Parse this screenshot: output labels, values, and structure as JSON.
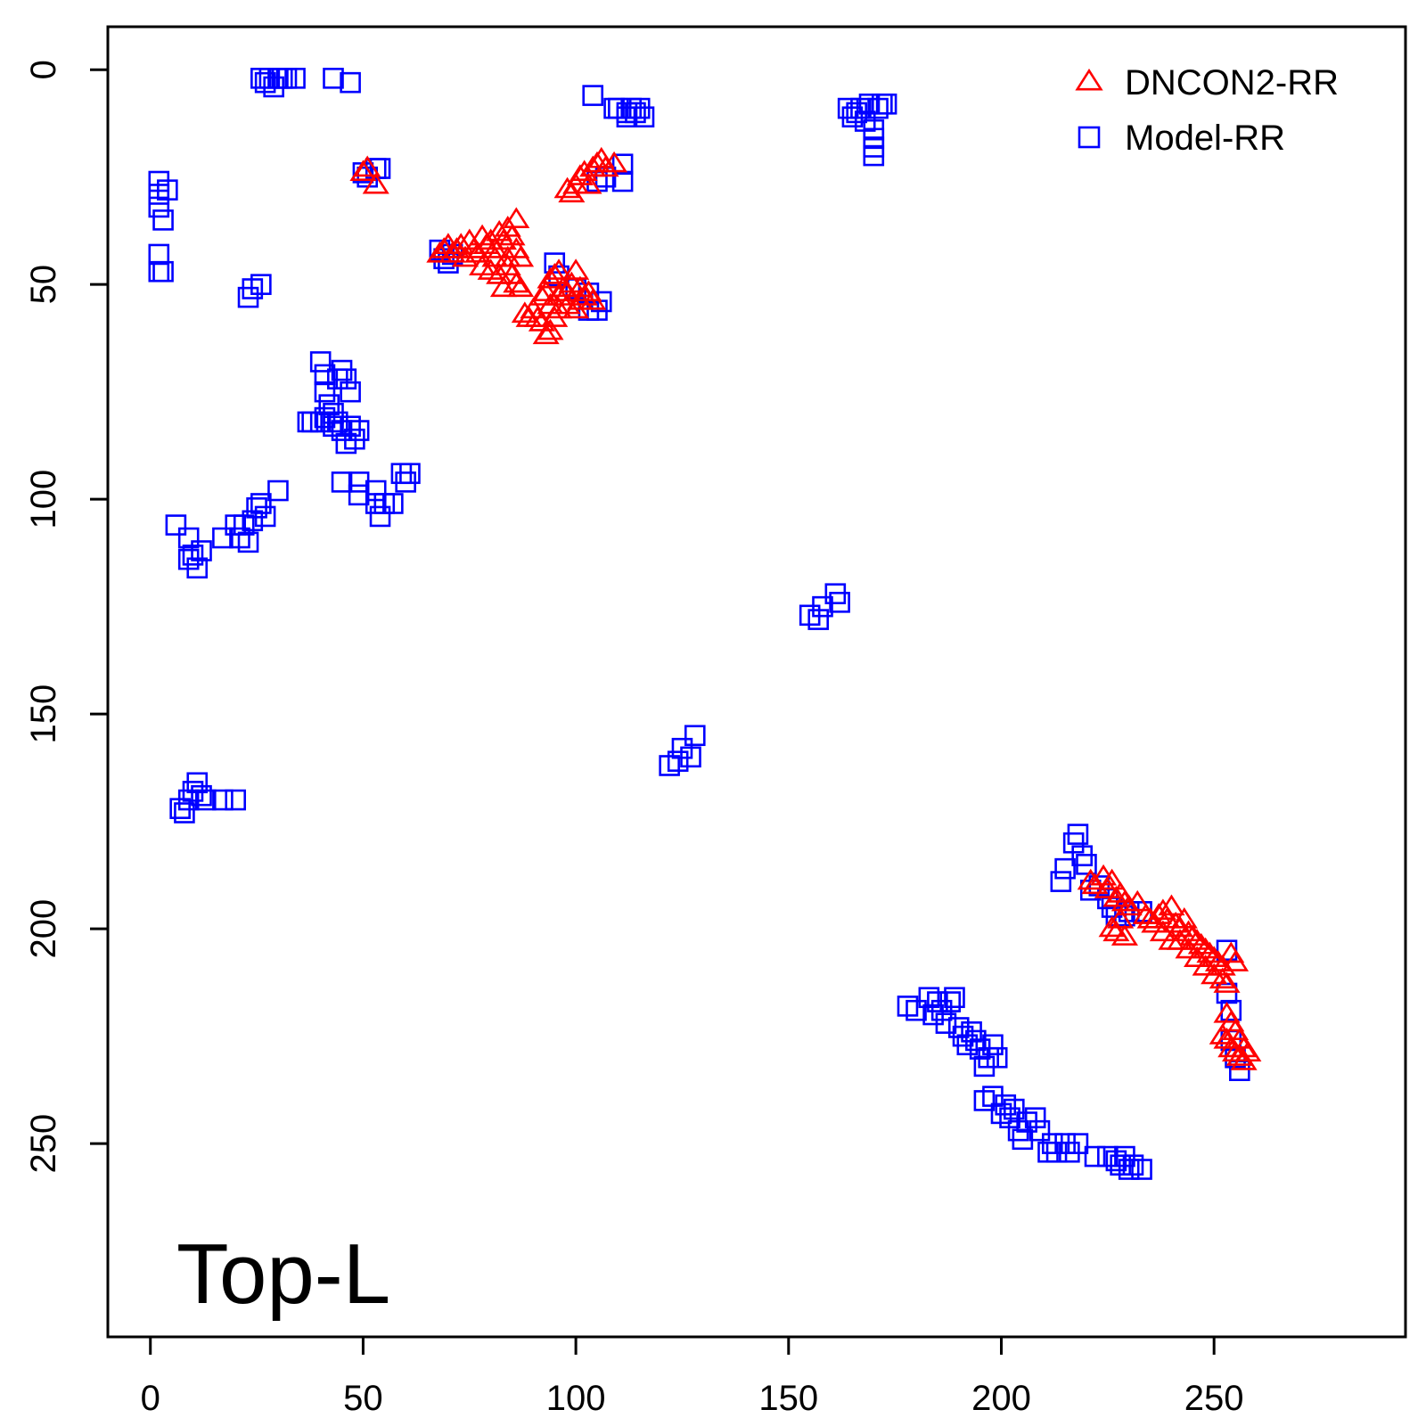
{
  "chart_data": {
    "type": "scatter",
    "title": "",
    "xlabel": "",
    "ylabel": "",
    "xlim": [
      -10,
      295
    ],
    "ylim": [
      295,
      -10
    ],
    "y_axis_reversed": true,
    "grid": false,
    "legend_position": "top-right",
    "x_ticks": [
      "0",
      "50",
      "100",
      "150",
      "200",
      "250"
    ],
    "y_ticks": [
      "0",
      "50",
      "100",
      "150",
      "200",
      "250"
    ],
    "annotation": "Top-L",
    "series": [
      {
        "name": "DNCON2-RR",
        "marker": "triangle",
        "color": "#ff0000",
        "points": [
          [
            50,
            24
          ],
          [
            51,
            23
          ],
          [
            53,
            27
          ],
          [
            68,
            43
          ],
          [
            69,
            42
          ],
          [
            70,
            41
          ],
          [
            71,
            43
          ],
          [
            72,
            42
          ],
          [
            73,
            41
          ],
          [
            74,
            44
          ],
          [
            75,
            40
          ],
          [
            76,
            42
          ],
          [
            77,
            43
          ],
          [
            78,
            39
          ],
          [
            79,
            41
          ],
          [
            80,
            40
          ],
          [
            81,
            42
          ],
          [
            82,
            38
          ],
          [
            83,
            40
          ],
          [
            84,
            37
          ],
          [
            85,
            39
          ],
          [
            86,
            35
          ],
          [
            78,
            46
          ],
          [
            80,
            47
          ],
          [
            82,
            48
          ],
          [
            84,
            46
          ],
          [
            85,
            48
          ],
          [
            86,
            50
          ],
          [
            87,
            51
          ],
          [
            83,
            51
          ],
          [
            84,
            44
          ],
          [
            86,
            42
          ],
          [
            87,
            44
          ],
          [
            81,
            44
          ],
          [
            88,
            57
          ],
          [
            89,
            58
          ],
          [
            90,
            56
          ],
          [
            91,
            58
          ],
          [
            92,
            59
          ],
          [
            93,
            62
          ],
          [
            94,
            61
          ],
          [
            95,
            58
          ],
          [
            96,
            56
          ],
          [
            92,
            53
          ],
          [
            93,
            52
          ],
          [
            94,
            49
          ],
          [
            95,
            48
          ],
          [
            96,
            47
          ],
          [
            97,
            51
          ],
          [
            98,
            52
          ],
          [
            99,
            50
          ],
          [
            100,
            47
          ],
          [
            101,
            51
          ],
          [
            102,
            53
          ],
          [
            103,
            52
          ],
          [
            104,
            54
          ],
          [
            98,
            55
          ],
          [
            100,
            56
          ],
          [
            101,
            54
          ],
          [
            94,
            55
          ],
          [
            96,
            53
          ],
          [
            98,
            28
          ],
          [
            99,
            29
          ],
          [
            100,
            27
          ],
          [
            101,
            25
          ],
          [
            102,
            24
          ],
          [
            103,
            27
          ],
          [
            104,
            23
          ],
          [
            105,
            22
          ],
          [
            106,
            21
          ],
          [
            107,
            23
          ],
          [
            109,
            22
          ],
          [
            221,
            189
          ],
          [
            222,
            190
          ],
          [
            224,
            188
          ],
          [
            225,
            191
          ],
          [
            226,
            189
          ],
          [
            227,
            193
          ],
          [
            228,
            192
          ],
          [
            229,
            194
          ],
          [
            230,
            195
          ],
          [
            232,
            194
          ],
          [
            226,
            200
          ],
          [
            227,
            201
          ],
          [
            228,
            198
          ],
          [
            229,
            202
          ],
          [
            234,
            197
          ],
          [
            235,
            198
          ],
          [
            236,
            199
          ],
          [
            237,
            197
          ],
          [
            238,
            196
          ],
          [
            239,
            198
          ],
          [
            240,
            195
          ],
          [
            241,
            199
          ],
          [
            242,
            200
          ],
          [
            243,
            198
          ],
          [
            244,
            201
          ],
          [
            245,
            202
          ],
          [
            246,
            203
          ],
          [
            247,
            204
          ],
          [
            248,
            205
          ],
          [
            249,
            206
          ],
          [
            250,
            207
          ],
          [
            251,
            208
          ],
          [
            252,
            209
          ],
          [
            238,
            201
          ],
          [
            240,
            203
          ],
          [
            242,
            203
          ],
          [
            244,
            205
          ],
          [
            246,
            207
          ],
          [
            248,
            209
          ],
          [
            250,
            211
          ],
          [
            252,
            212
          ],
          [
            253,
            213
          ],
          [
            254,
            206
          ],
          [
            255,
            208
          ],
          [
            253,
            220
          ],
          [
            254,
            222
          ],
          [
            255,
            224
          ],
          [
            256,
            226
          ],
          [
            257,
            228
          ],
          [
            252,
            225
          ],
          [
            253,
            226
          ],
          [
            254,
            228
          ],
          [
            255,
            229
          ],
          [
            256,
            230
          ],
          [
            257,
            231
          ],
          [
            258,
            229
          ]
        ]
      },
      {
        "name": "Model-RR",
        "marker": "square",
        "color": "#0000ff",
        "points": [
          [
            26,
            2
          ],
          [
            27,
            3
          ],
          [
            28,
            2
          ],
          [
            29,
            4
          ],
          [
            30,
            2
          ],
          [
            31,
            2
          ],
          [
            32,
            2
          ],
          [
            34,
            2
          ],
          [
            43,
            2
          ],
          [
            47,
            3
          ],
          [
            2,
            26
          ],
          [
            2,
            29
          ],
          [
            2,
            32
          ],
          [
            3,
            35
          ],
          [
            4,
            28
          ],
          [
            2,
            43
          ],
          [
            2,
            47
          ],
          [
            3,
            47
          ],
          [
            23,
            53
          ],
          [
            24,
            51
          ],
          [
            26,
            50
          ],
          [
            50,
            24
          ],
          [
            51,
            25
          ],
          [
            53,
            23
          ],
          [
            54,
            23
          ],
          [
            68,
            42
          ],
          [
            69,
            44
          ],
          [
            70,
            45
          ],
          [
            71,
            43
          ],
          [
            104,
            6
          ],
          [
            109,
            9
          ],
          [
            110,
            9
          ],
          [
            111,
            22
          ],
          [
            111,
            26
          ],
          [
            112,
            10
          ],
          [
            112,
            11
          ],
          [
            113,
            9
          ],
          [
            114,
            10
          ],
          [
            115,
            9
          ],
          [
            116,
            11
          ],
          [
            107,
            25
          ],
          [
            105,
            26
          ],
          [
            95,
            45
          ],
          [
            96,
            48
          ],
          [
            100,
            51
          ],
          [
            103,
            52
          ],
          [
            105,
            56
          ],
          [
            106,
            54
          ],
          [
            103,
            56
          ],
          [
            40,
            68
          ],
          [
            41,
            71
          ],
          [
            41,
            75
          ],
          [
            42,
            78
          ],
          [
            43,
            80
          ],
          [
            44,
            72
          ],
          [
            45,
            70
          ],
          [
            46,
            72
          ],
          [
            47,
            75
          ],
          [
            44,
            82
          ],
          [
            45,
            84
          ],
          [
            46,
            87
          ],
          [
            47,
            83
          ],
          [
            48,
            86
          ],
          [
            49,
            84
          ],
          [
            37,
            82
          ],
          [
            41,
            81
          ],
          [
            43,
            83
          ],
          [
            45,
            96
          ],
          [
            49,
            96
          ],
          [
            49,
            99
          ],
          [
            53,
            98
          ],
          [
            53,
            101
          ],
          [
            54,
            104
          ],
          [
            55,
            101
          ],
          [
            57,
            101
          ],
          [
            59,
            94
          ],
          [
            60,
            96
          ],
          [
            61,
            94
          ],
          [
            38,
            82
          ],
          [
            40,
            82
          ],
          [
            6,
            106
          ],
          [
            9,
            109
          ],
          [
            9,
            114
          ],
          [
            10,
            113
          ],
          [
            11,
            116
          ],
          [
            12,
            112
          ],
          [
            17,
            109
          ],
          [
            20,
            106
          ],
          [
            21,
            109
          ],
          [
            22,
            106
          ],
          [
            23,
            110
          ],
          [
            24,
            105
          ],
          [
            25,
            102
          ],
          [
            26,
            101
          ],
          [
            27,
            104
          ],
          [
            30,
            98
          ],
          [
            7,
            172
          ],
          [
            8,
            173
          ],
          [
            9,
            170
          ],
          [
            10,
            168
          ],
          [
            11,
            166
          ],
          [
            12,
            169
          ],
          [
            13,
            170
          ],
          [
            17,
            170
          ],
          [
            20,
            170
          ],
          [
            155,
            127
          ],
          [
            157,
            128
          ],
          [
            158,
            125
          ],
          [
            161,
            122
          ],
          [
            162,
            124
          ],
          [
            122,
            162
          ],
          [
            124,
            161
          ],
          [
            125,
            158
          ],
          [
            127,
            160
          ],
          [
            128,
            155
          ],
          [
            164,
            9
          ],
          [
            165,
            11
          ],
          [
            166,
            10
          ],
          [
            167,
            9
          ],
          [
            168,
            12
          ],
          [
            169,
            8
          ],
          [
            170,
            14
          ],
          [
            170,
            16
          ],
          [
            170,
            18
          ],
          [
            170,
            20
          ],
          [
            171,
            9
          ],
          [
            172,
            8
          ],
          [
            173,
            8
          ],
          [
            214,
            189
          ],
          [
            215,
            186
          ],
          [
            217,
            180
          ],
          [
            218,
            178
          ],
          [
            219,
            183
          ],
          [
            220,
            185
          ],
          [
            221,
            191
          ],
          [
            223,
            190
          ],
          [
            225,
            193
          ],
          [
            226,
            195
          ],
          [
            227,
            197
          ],
          [
            229,
            197
          ],
          [
            230,
            196
          ],
          [
            233,
            196
          ],
          [
            253,
            205
          ],
          [
            253,
            215
          ],
          [
            254,
            219
          ],
          [
            254,
            226
          ],
          [
            255,
            230
          ],
          [
            256,
            233
          ],
          [
            178,
            218
          ],
          [
            180,
            219
          ],
          [
            183,
            216
          ],
          [
            184,
            220
          ],
          [
            185,
            217
          ],
          [
            186,
            219
          ],
          [
            187,
            222
          ],
          [
            188,
            217
          ],
          [
            189,
            216
          ],
          [
            190,
            223
          ],
          [
            191,
            225
          ],
          [
            192,
            227
          ],
          [
            193,
            224
          ],
          [
            194,
            226
          ],
          [
            195,
            228
          ],
          [
            196,
            232
          ],
          [
            197,
            230
          ],
          [
            198,
            227
          ],
          [
            199,
            230
          ],
          [
            196,
            240
          ],
          [
            198,
            239
          ],
          [
            200,
            243
          ],
          [
            201,
            241
          ],
          [
            202,
            244
          ],
          [
            203,
            242
          ],
          [
            204,
            247
          ],
          [
            205,
            249
          ],
          [
            206,
            245
          ],
          [
            208,
            244
          ],
          [
            209,
            247
          ],
          [
            211,
            252
          ],
          [
            212,
            250
          ],
          [
            213,
            252
          ],
          [
            215,
            250
          ],
          [
            216,
            252
          ],
          [
            218,
            250
          ],
          [
            222,
            253
          ],
          [
            225,
            253
          ],
          [
            227,
            254
          ],
          [
            228,
            255
          ],
          [
            229,
            253
          ],
          [
            230,
            256
          ],
          [
            231,
            255
          ],
          [
            233,
            256
          ]
        ]
      }
    ]
  }
}
